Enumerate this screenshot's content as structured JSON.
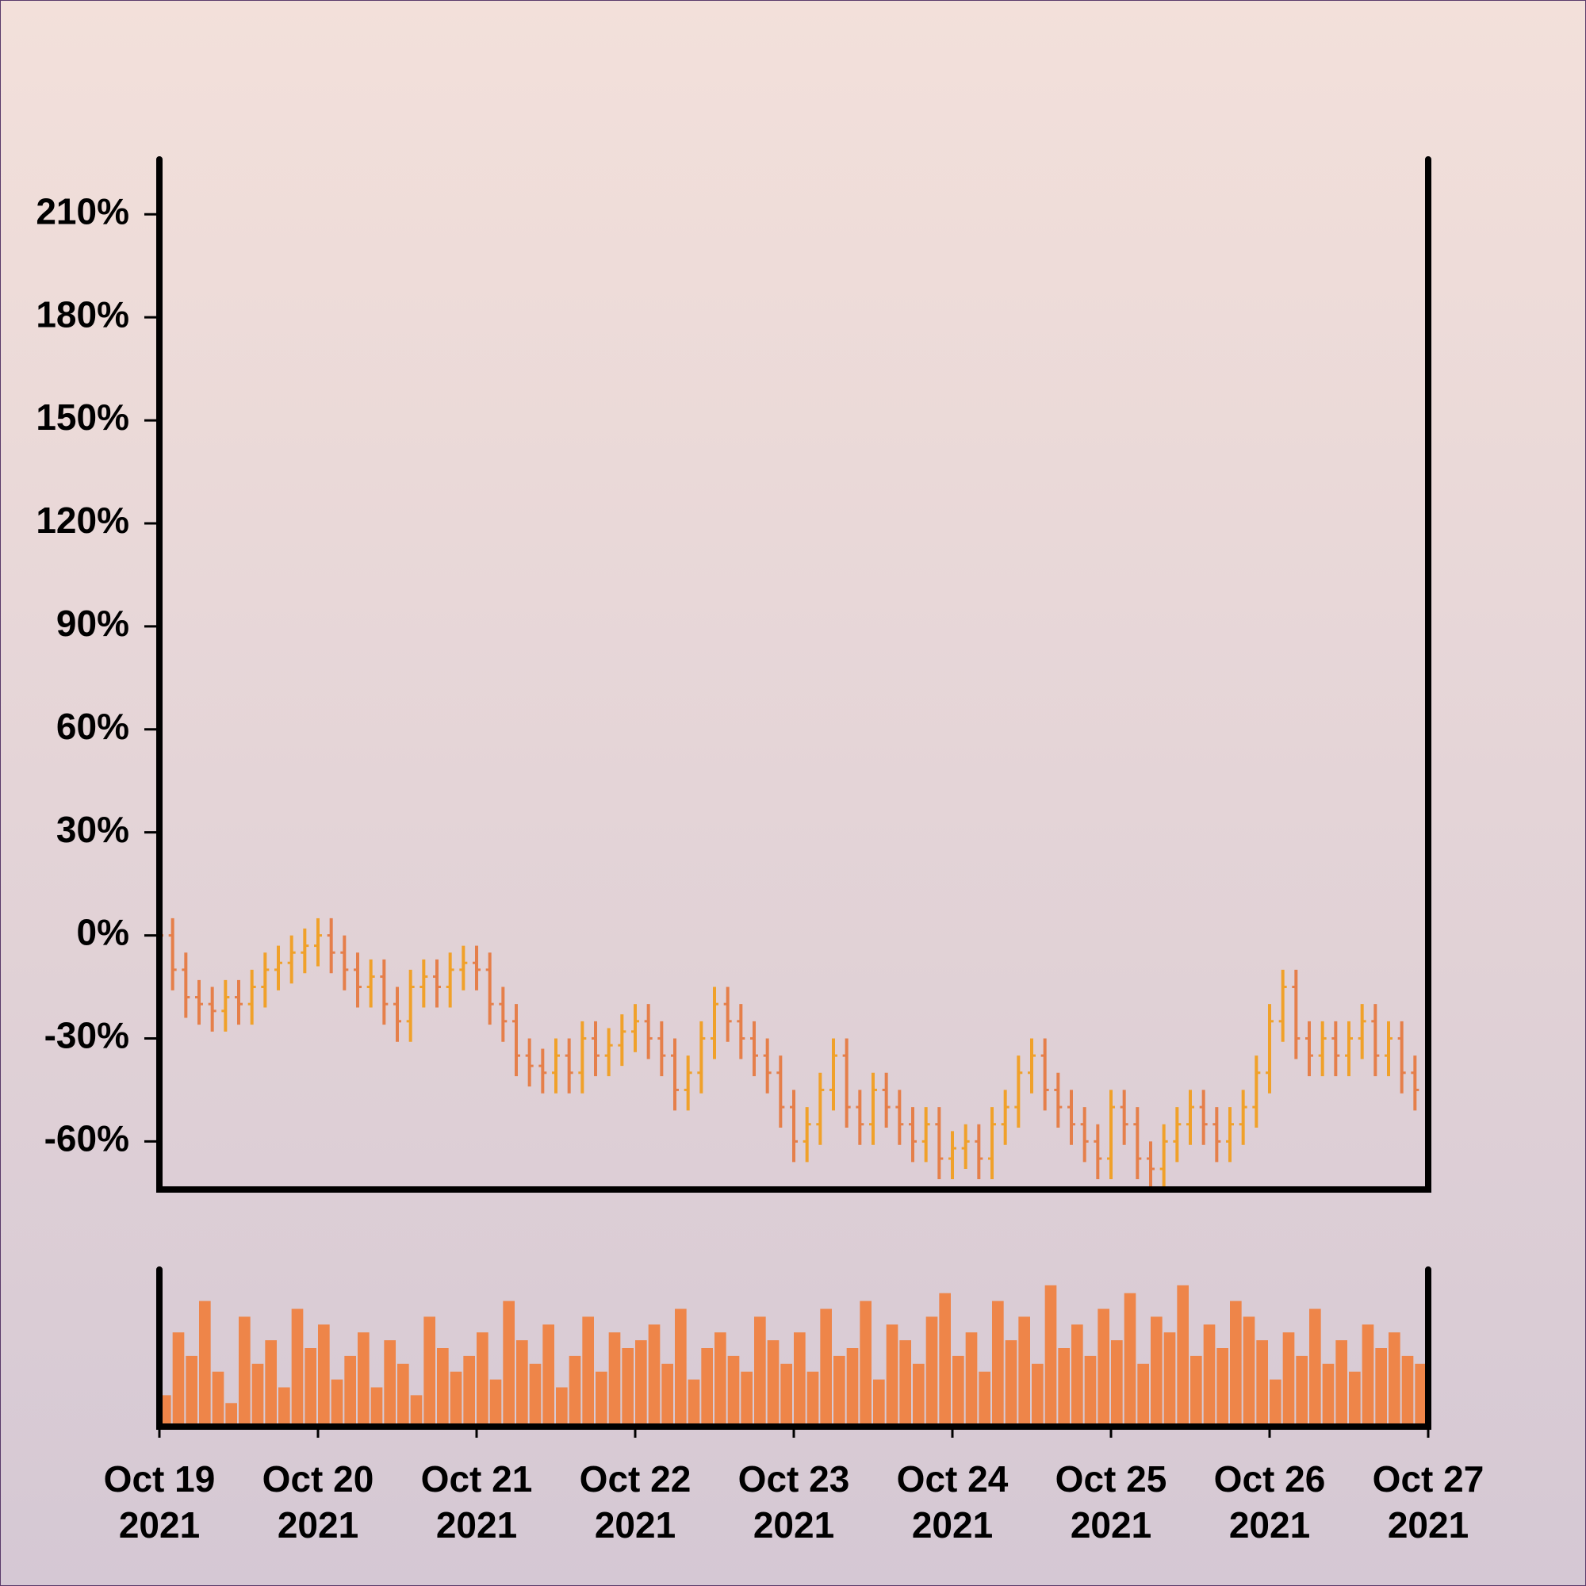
{
  "chart_data": {
    "type": "ohlc",
    "x": [
      "2021-10-19T00:00",
      "2021-10-19T02:00",
      "2021-10-19T04:00",
      "2021-10-19T06:00",
      "2021-10-19T08:00",
      "2021-10-19T10:00",
      "2021-10-19T12:00",
      "2021-10-19T14:00",
      "2021-10-19T16:00",
      "2021-10-19T18:00",
      "2021-10-19T20:00",
      "2021-10-19T22:00",
      "2021-10-20T00:00",
      "2021-10-20T02:00",
      "2021-10-20T04:00",
      "2021-10-20T06:00",
      "2021-10-20T08:00",
      "2021-10-20T10:00",
      "2021-10-20T12:00",
      "2021-10-20T14:00",
      "2021-10-20T16:00",
      "2021-10-20T18:00",
      "2021-10-20T20:00",
      "2021-10-20T22:00",
      "2021-10-21T00:00",
      "2021-10-21T02:00",
      "2021-10-21T04:00",
      "2021-10-21T06:00",
      "2021-10-21T08:00",
      "2021-10-21T10:00",
      "2021-10-21T12:00",
      "2021-10-21T14:00",
      "2021-10-21T16:00",
      "2021-10-21T18:00",
      "2021-10-21T20:00",
      "2021-10-21T22:00",
      "2021-10-22T00:00",
      "2021-10-22T02:00",
      "2021-10-22T04:00",
      "2021-10-22T06:00",
      "2021-10-22T08:00",
      "2021-10-22T10:00",
      "2021-10-22T12:00",
      "2021-10-22T14:00",
      "2021-10-22T16:00",
      "2021-10-22T18:00",
      "2021-10-22T20:00",
      "2021-10-22T22:00",
      "2021-10-23T00:00",
      "2021-10-23T02:00",
      "2021-10-23T04:00",
      "2021-10-23T06:00",
      "2021-10-23T08:00",
      "2021-10-23T10:00",
      "2021-10-23T12:00",
      "2021-10-23T14:00",
      "2021-10-23T16:00",
      "2021-10-23T18:00",
      "2021-10-23T20:00",
      "2021-10-23T22:00",
      "2021-10-24T00:00",
      "2021-10-24T02:00",
      "2021-10-24T04:00",
      "2021-10-24T06:00",
      "2021-10-24T08:00",
      "2021-10-24T10:00",
      "2021-10-24T12:00",
      "2021-10-24T14:00",
      "2021-10-24T16:00",
      "2021-10-24T18:00",
      "2021-10-24T20:00",
      "2021-10-24T22:00",
      "2021-10-25T00:00",
      "2021-10-25T02:00",
      "2021-10-25T04:00",
      "2021-10-25T06:00",
      "2021-10-25T08:00",
      "2021-10-25T10:00",
      "2021-10-25T12:00",
      "2021-10-25T14:00",
      "2021-10-25T16:00",
      "2021-10-25T18:00",
      "2021-10-25T20:00",
      "2021-10-25T22:00",
      "2021-10-26T00:00",
      "2021-10-26T02:00",
      "2021-10-26T04:00",
      "2021-10-26T06:00",
      "2021-10-26T08:00",
      "2021-10-26T10:00",
      "2021-10-26T12:00",
      "2021-10-26T14:00",
      "2021-10-26T16:00",
      "2021-10-26T18:00",
      "2021-10-26T20:00",
      "2021-10-26T22:00"
    ],
    "open": [
      2,
      0,
      -10,
      -18,
      -20,
      -22,
      -18,
      -20,
      -15,
      -10,
      -8,
      -5,
      -3,
      0,
      -5,
      -10,
      -15,
      -12,
      -20,
      -25,
      -15,
      -12,
      -15,
      -10,
      -8,
      -10,
      -20,
      -25,
      -35,
      -38,
      -40,
      -35,
      -40,
      -30,
      -35,
      -32,
      -28,
      -25,
      -30,
      -35,
      -45,
      -40,
      -30,
      -20,
      -25,
      -30,
      -35,
      -40,
      -50,
      -60,
      -55,
      -45,
      -35,
      -50,
      -55,
      -45,
      -50,
      -55,
      -60,
      -55,
      -65,
      -62,
      -60,
      -65,
      -55,
      -50,
      -40,
      -35,
      -45,
      -50,
      -55,
      -60,
      -65,
      -50,
      -55,
      -65,
      -68,
      -60,
      -55,
      -50,
      -55,
      -60,
      -55,
      -50,
      -40,
      -25,
      -15,
      -30,
      -35,
      -30,
      -35,
      -30,
      -25,
      -35,
      -30,
      -40
    ],
    "high": [
      7,
      5,
      -5,
      -13,
      -15,
      -13,
      -13,
      -10,
      -5,
      -3,
      0,
      2,
      5,
      5,
      0,
      -5,
      -7,
      -7,
      -15,
      -10,
      -7,
      -7,
      -5,
      -3,
      -3,
      -5,
      -15,
      -20,
      -30,
      -33,
      -30,
      -30,
      -25,
      -25,
      -27,
      -23,
      -20,
      -20,
      -25,
      -30,
      -35,
      -25,
      -15,
      -15,
      -20,
      -25,
      -30,
      -35,
      -45,
      -50,
      -40,
      -30,
      -30,
      -45,
      -40,
      -40,
      -45,
      -50,
      -50,
      -50,
      -57,
      -55,
      -55,
      -50,
      -45,
      -35,
      -30,
      -30,
      -40,
      -45,
      -50,
      -55,
      -45,
      -45,
      -50,
      -60,
      -55,
      -50,
      -45,
      -45,
      -50,
      -50,
      -45,
      -35,
      -20,
      -10,
      -10,
      -25,
      -25,
      -25,
      -25,
      -20,
      -20,
      -25,
      -25,
      -35
    ],
    "low": [
      -6,
      -16,
      -24,
      -26,
      -28,
      -28,
      -26,
      -26,
      -21,
      -16,
      -14,
      -11,
      -9,
      -11,
      -16,
      -21,
      -21,
      -26,
      -31,
      -31,
      -21,
      -21,
      -21,
      -16,
      -16,
      -26,
      -31,
      -41,
      -44,
      -46,
      -46,
      -46,
      -46,
      -41,
      -41,
      -38,
      -34,
      -36,
      -41,
      -51,
      -51,
      -46,
      -36,
      -31,
      -36,
      -41,
      -46,
      -56,
      -66,
      -66,
      -61,
      -51,
      -56,
      -61,
      -61,
      -56,
      -61,
      -66,
      -66,
      -71,
      -71,
      -68,
      -71,
      -71,
      -61,
      -56,
      -46,
      -51,
      -56,
      -61,
      -66,
      -71,
      -71,
      -61,
      -71,
      -74,
      -74,
      -66,
      -61,
      -61,
      -66,
      -66,
      -61,
      -56,
      -46,
      -31,
      -36,
      -41,
      -41,
      -41,
      -41,
      -36,
      -41,
      -41,
      -46,
      -51
    ],
    "close": [
      0,
      -10,
      -18,
      -20,
      -22,
      -18,
      -20,
      -15,
      -10,
      -8,
      -5,
      -3,
      0,
      -5,
      -10,
      -15,
      -12,
      -20,
      -25,
      -15,
      -12,
      -15,
      -10,
      -8,
      -10,
      -20,
      -25,
      -35,
      -38,
      -40,
      -35,
      -40,
      -30,
      -35,
      -32,
      -28,
      -25,
      -30,
      -35,
      -45,
      -40,
      -30,
      -20,
      -25,
      -30,
      -35,
      -40,
      -50,
      -60,
      -55,
      -45,
      -35,
      -50,
      -55,
      -45,
      -50,
      -55,
      -60,
      -55,
      -65,
      -62,
      -60,
      -65,
      -55,
      -50,
      -40,
      -35,
      -45,
      -50,
      -55,
      -60,
      -65,
      -50,
      -55,
      -65,
      -68,
      -60,
      -55,
      -50,
      -55,
      -60,
      -55,
      -50,
      -40,
      -25,
      -15,
      -30,
      -35,
      -30,
      -35,
      -30,
      -25,
      -35,
      -30,
      -40,
      -45
    ],
    "up_color": "#f0a12a",
    "down_color": "#e57f4a",
    "volume": {
      "color": "#ee8549",
      "ylim": [
        0,
        100
      ],
      "values": [
        20,
        60,
        45,
        80,
        35,
        15,
        70,
        40,
        55,
        25,
        75,
        50,
        65,
        30,
        45,
        60,
        25,
        55,
        40,
        20,
        70,
        50,
        35,
        45,
        60,
        30,
        80,
        55,
        40,
        65,
        25,
        45,
        70,
        35,
        60,
        50,
        55,
        65,
        40,
        75,
        30,
        50,
        60,
        45,
        35,
        70,
        55,
        40,
        60,
        35,
        75,
        45,
        50,
        80,
        30,
        65,
        55,
        40,
        70,
        85,
        45,
        60,
        35,
        80,
        55,
        70,
        40,
        90,
        50,
        65,
        45,
        75,
        55,
        85,
        40,
        70,
        60,
        90,
        45,
        65,
        50,
        80,
        70,
        55,
        30,
        60,
        45,
        75,
        40,
        55,
        35,
        65,
        50,
        60,
        45,
        40
      ]
    },
    "xlim": [
      "2021-10-19",
      "2021-10-27"
    ],
    "xticks": [
      {
        "value": "2021-10-19",
        "label": "Oct 19 2021"
      },
      {
        "value": "2021-10-20",
        "label": "Oct 20 2021"
      },
      {
        "value": "2021-10-21",
        "label": "Oct 21 2021"
      },
      {
        "value": "2021-10-22",
        "label": "Oct 22 2021"
      },
      {
        "value": "2021-10-23",
        "label": "Oct 23 2021"
      },
      {
        "value": "2021-10-24",
        "label": "Oct 24 2021"
      },
      {
        "value": "2021-10-25",
        "label": "Oct 25 2021"
      },
      {
        "value": "2021-10-26",
        "label": "Oct 26 2021"
      },
      {
        "value": "2021-10-27",
        "label": "Oct 27 2021"
      }
    ],
    "ylim": [
      -74,
      226
    ],
    "yticks": [
      {
        "value": -60,
        "label": "-60%"
      },
      {
        "value": -30,
        "label": "-30%"
      },
      {
        "value": 0,
        "label": "0%"
      },
      {
        "value": 30,
        "label": "30%"
      },
      {
        "value": 60,
        "label": "60%"
      },
      {
        "value": 90,
        "label": "90%"
      },
      {
        "value": 120,
        "label": "120%"
      },
      {
        "value": 150,
        "label": "150%"
      },
      {
        "value": 180,
        "label": "180%"
      },
      {
        "value": 210,
        "label": "210%"
      }
    ]
  }
}
